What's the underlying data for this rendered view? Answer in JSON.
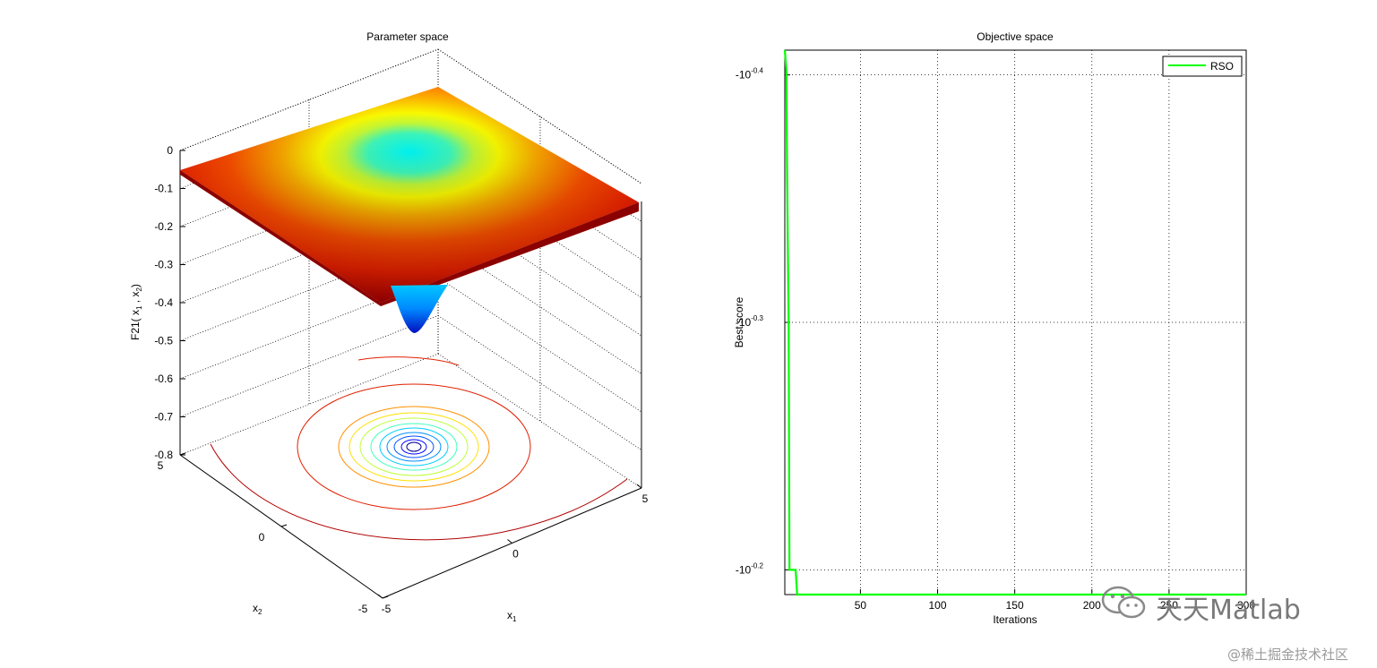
{
  "chart_data": [
    {
      "type": "surface",
      "title": "Parameter space",
      "xlabel": "x",
      "xlabel_sub": "1",
      "ylabel": "x",
      "ylabel_sub": "2",
      "zlabel": "F21( x",
      "zlabel_sub1": "1",
      "zlabel_mid": " , x",
      "zlabel_sub2": "2",
      "zlabel_end": ")",
      "x_ticks": [
        "-5",
        "0",
        "5"
      ],
      "y_ticks": [
        "-5",
        "0",
        "5"
      ],
      "z_ticks": [
        "0",
        "-0.1",
        "-0.2",
        "-0.3",
        "-0.4",
        "-0.5",
        "-0.6",
        "-0.7",
        "-0.8"
      ],
      "xlim": [
        -5,
        5
      ],
      "ylim": [
        -5,
        5
      ],
      "zlim": [
        -0.8,
        0
      ],
      "surface_min": -0.48,
      "colormap": "jet",
      "contours": "projected at base",
      "grid": true
    },
    {
      "type": "line",
      "title": "Objective space",
      "xlabel": "Iterations",
      "ylabel": "Best score",
      "x_ticks": [
        "50",
        "100",
        "150",
        "200",
        "250",
        "300"
      ],
      "y_ticks": [
        {
          "base": "-10",
          "exp": "-0.4"
        },
        {
          "base": "-10",
          "exp": "-0.3"
        },
        {
          "base": "-10",
          "exp": "-0.2"
        }
      ],
      "xlim": [
        1,
        300
      ],
      "ylim_exponent": [
        -0.41,
        -0.19
      ],
      "yscale": "log",
      "grid": true,
      "legend_position": "top-right",
      "series": [
        {
          "name": "RSO",
          "color": "#00ff00",
          "x": [
            1,
            2,
            2.5,
            3,
            3.5,
            4,
            5,
            6,
            7,
            8,
            9,
            10,
            300
          ],
          "y_exponent": [
            -0.41,
            -0.402,
            -0.36,
            -0.33,
            -0.3,
            -0.2,
            -0.2,
            -0.2,
            -0.2,
            -0.2,
            -0.19,
            -0.19,
            -0.19
          ]
        }
      ]
    }
  ],
  "watermark": {
    "brand": "天天Matlab",
    "footer": "@稀土掘金技术社区"
  }
}
